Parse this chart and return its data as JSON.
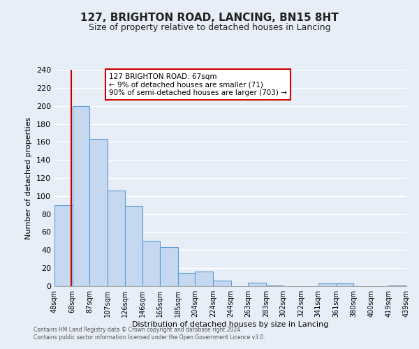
{
  "title": "127, BRIGHTON ROAD, LANCING, BN15 8HT",
  "subtitle": "Size of property relative to detached houses in Lancing",
  "xlabel": "Distribution of detached houses by size in Lancing",
  "ylabel": "Number of detached properties",
  "bar_edges": [
    48,
    68,
    87,
    107,
    126,
    146,
    165,
    185,
    204,
    224,
    244,
    263,
    283,
    302,
    322,
    341,
    361,
    380,
    400,
    419,
    439
  ],
  "bar_heights": [
    90,
    200,
    163,
    106,
    89,
    50,
    43,
    15,
    16,
    6,
    0,
    4,
    1,
    0,
    0,
    3,
    3,
    0,
    0,
    1
  ],
  "bar_color": "#c5d8f0",
  "bar_edge_color": "#5b9bd5",
  "property_line_x": 67,
  "property_line_color": "#cc0000",
  "annotation_text_line1": "127 BRIGHTON ROAD: 67sqm",
  "annotation_text_line2": "← 9% of detached houses are smaller (71)",
  "annotation_text_line3": "90% of semi-detached houses are larger (703) →",
  "annotation_box_color": "#ffffff",
  "annotation_box_edge_color": "#cc0000",
  "ylim": [
    0,
    240
  ],
  "yticks": [
    0,
    20,
    40,
    60,
    80,
    100,
    120,
    140,
    160,
    180,
    200,
    220,
    240
  ],
  "bg_color": "#e8eef7",
  "grid_color": "#ffffff",
  "footer_line1": "Contains HM Land Registry data © Crown copyright and database right 2024.",
  "footer_line2": "Contains public sector information licensed under the Open Government Licence v3.0.",
  "tick_labels": [
    "48sqm",
    "68sqm",
    "87sqm",
    "107sqm",
    "126sqm",
    "146sqm",
    "165sqm",
    "185sqm",
    "204sqm",
    "224sqm",
    "244sqm",
    "263sqm",
    "283sqm",
    "302sqm",
    "322sqm",
    "341sqm",
    "361sqm",
    "380sqm",
    "400sqm",
    "419sqm",
    "439sqm"
  ]
}
